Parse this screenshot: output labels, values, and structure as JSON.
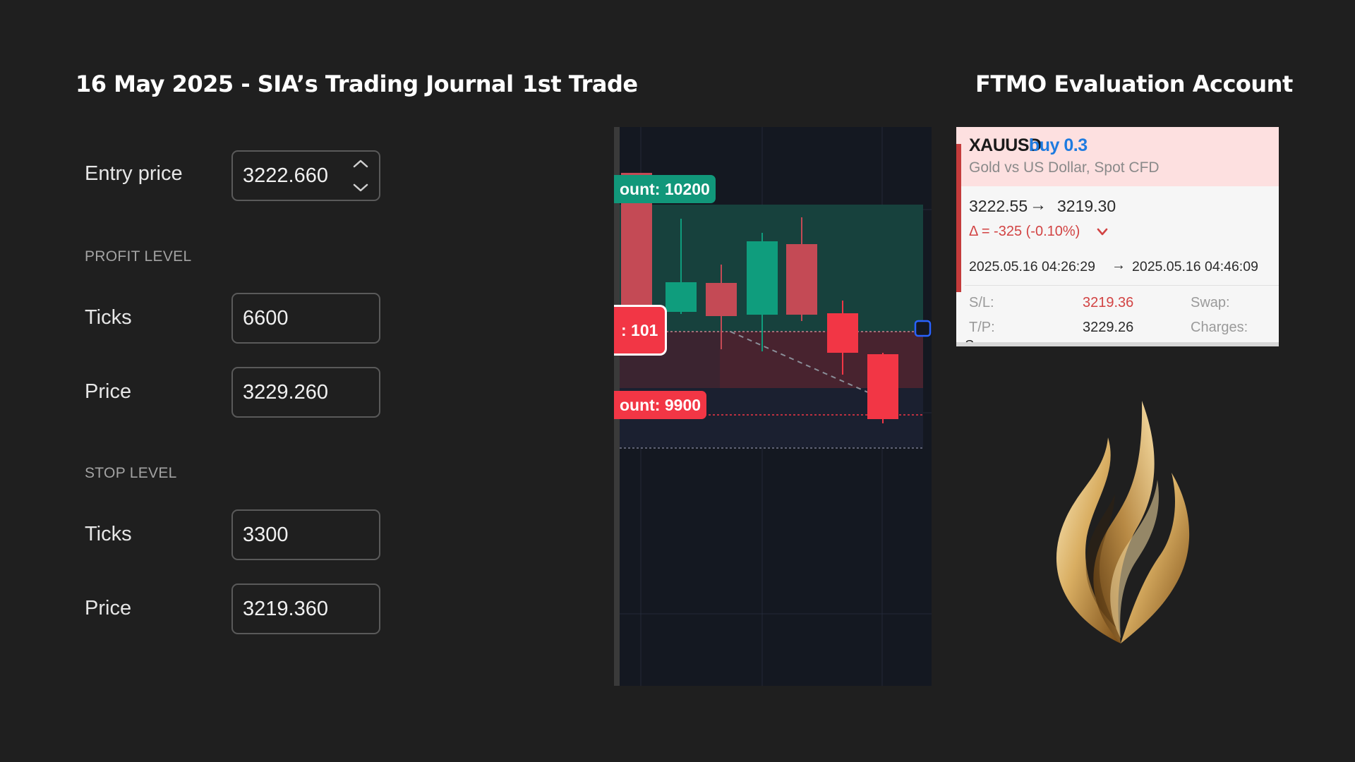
{
  "header": {
    "journal_title": "16 May 2025 - SIA’s Trading Journal",
    "trade_label": "1st Trade",
    "account_title": "FTMO Evaluation Account"
  },
  "form": {
    "entry_label": "Entry price",
    "entry_value": "3222.660",
    "profit_section": "PROFIT LEVEL",
    "profit_ticks_label": "Ticks",
    "profit_ticks_value": "6600",
    "profit_price_label": "Price",
    "profit_price_value": "3229.260",
    "stop_section": "STOP LEVEL",
    "stop_ticks_label": "Ticks",
    "stop_ticks_value": "3300",
    "stop_price_label": "Price",
    "stop_price_value": "3219.360",
    "stepper_icons": [
      "chevron-up-icon",
      "chevron-down-icon"
    ]
  },
  "chart": {
    "target_badge": "ount: 10200",
    "entry_badge": ": 101",
    "stop_badge": "ount: 9900",
    "colors": {
      "bull": "#0f9d7d",
      "bear": "#c44a55",
      "bear_bright": "#f23645",
      "profit_zone": "#17413d",
      "loss_zone": "#4a2430",
      "background": "#141821",
      "handle": "#2962ff"
    },
    "candles": [
      {
        "dir": "down",
        "bright": false
      },
      {
        "dir": "up",
        "bright": false
      },
      {
        "dir": "down",
        "bright": false
      },
      {
        "dir": "up",
        "bright": false
      },
      {
        "dir": "down",
        "bright": false
      },
      {
        "dir": "down",
        "bright": true
      },
      {
        "dir": "down",
        "bright": true
      }
    ]
  },
  "trade": {
    "symbol": "XAUUSD",
    "side": "buy 0.3",
    "description": "Gold vs US Dollar, Spot CFD",
    "open_price": "3222.55",
    "arrow": "→",
    "close_price": "3219.30",
    "delta": "Δ = -325 (-0.10%)",
    "delta_icon": "chevron-down-icon",
    "open_time": "2025.05.16 04:26:29",
    "close_time": "2025.05.16 04:46:09",
    "sl_label": "S/L:",
    "sl_value": "3219.36",
    "swap_label": "Swap:",
    "tp_label": "T/P:",
    "tp_value": "3229.26",
    "charges_label": "Charges:",
    "cutoff_text": "Swap",
    "colors": {
      "buy": "#1e7be0",
      "loss": "#d24343",
      "header_bg": "#fde0e0"
    }
  },
  "logo": {
    "icon": "flame-logo-icon",
    "gold_light": "#f6dca2",
    "gold_dark": "#8a5a1c"
  }
}
